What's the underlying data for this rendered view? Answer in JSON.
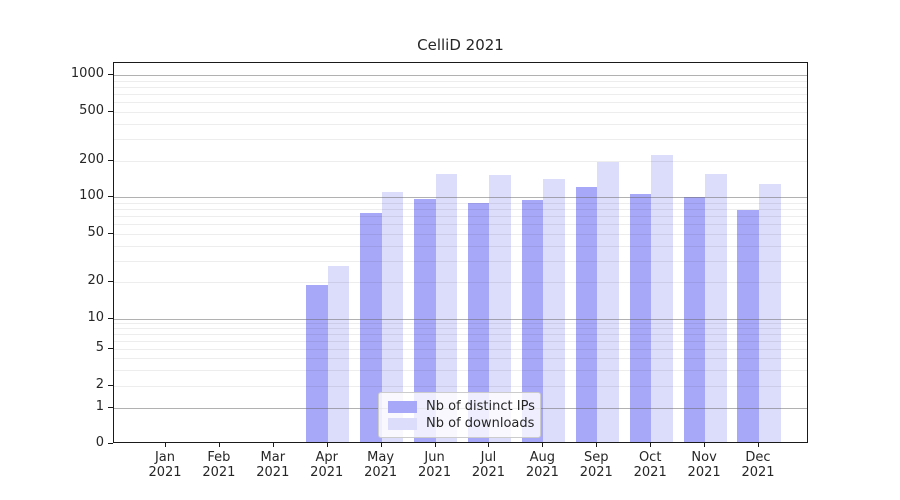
{
  "figure": {
    "title": "CelliD 2021"
  },
  "chart_data": {
    "type": "bar",
    "title": "CelliD 2021",
    "xlabel": "",
    "ylabel": "",
    "yscale": "symlog",
    "ylim": [
      0,
      1000
    ],
    "yticks": [
      0,
      1,
      2,
      5,
      10,
      20,
      50,
      100,
      200,
      500,
      1000
    ],
    "grid": "both",
    "legend_position": "lower center",
    "categories": [
      "Jan 2021",
      "Feb 2021",
      "Mar 2021",
      "Apr 2021",
      "May 2021",
      "Jun 2021",
      "Jul 2021",
      "Aug 2021",
      "Sep 2021",
      "Oct 2021",
      "Nov 2021",
      "Dec 2021"
    ],
    "series": [
      {
        "name": "Nb of distinct IPs",
        "color": "#a8a8f8",
        "values": [
          0,
          0,
          0,
          19,
          74,
          97,
          90,
          94,
          120,
          106,
          100,
          78
        ]
      },
      {
        "name": "Nb of downloads",
        "color": "#dcdcfb",
        "values": [
          0,
          0,
          0,
          27,
          110,
          155,
          152,
          140,
          195,
          220,
          155,
          128
        ]
      }
    ]
  },
  "legend": {
    "items": [
      {
        "label": "Nb of distinct IPs",
        "color": "#a8a8f8"
      },
      {
        "label": "Nb of downloads",
        "color": "#dcdcfb"
      }
    ]
  }
}
